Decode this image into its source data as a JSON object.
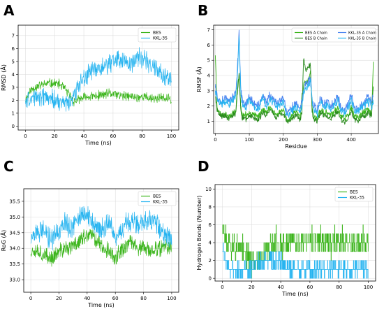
{
  "panels": {
    "a": "A",
    "b": "B",
    "c": "C",
    "d": "D"
  },
  "colors": {
    "bes_green": "#3cb51c",
    "kkl_blue": "#27b4f0",
    "bes_b_dark": "#2a8a1e",
    "kkl_a_blue": "#4c86f0"
  },
  "chart_data": [
    {
      "id": "A",
      "type": "line",
      "xlabel": "Time (ns)",
      "ylabel": "RMSD (Å)",
      "xlim": [
        -5,
        105
      ],
      "ylim": [
        -0.3,
        7.8
      ],
      "xticks": [
        0,
        20,
        40,
        60,
        80,
        100
      ],
      "yticks": [
        0,
        1,
        2,
        3,
        4,
        5,
        6,
        7
      ],
      "grid": true,
      "legend_position": "top-right",
      "series": [
        {
          "name": "BES",
          "color": "#3cb51c",
          "x": [
            0,
            3,
            6,
            9,
            12,
            15,
            18,
            21,
            24,
            27,
            30,
            33,
            36,
            40,
            44,
            48,
            52,
            56,
            60,
            64,
            68,
            72,
            76,
            80,
            84,
            88,
            92,
            96,
            100
          ],
          "y": [
            2.0,
            2.7,
            3.0,
            3.1,
            3.2,
            3.3,
            3.3,
            3.3,
            3.2,
            2.9,
            2.4,
            1.9,
            2.0,
            2.2,
            2.3,
            2.3,
            2.4,
            2.5,
            2.5,
            2.4,
            2.3,
            2.3,
            2.2,
            2.3,
            2.2,
            2.1,
            2.2,
            2.1,
            2.1
          ],
          "noise": 0.45
        },
        {
          "name": "KKL-35",
          "color": "#27b4f0",
          "x": [
            0,
            3,
            6,
            9,
            12,
            15,
            18,
            21,
            24,
            27,
            30,
            33,
            36,
            40,
            44,
            48,
            52,
            56,
            60,
            64,
            68,
            72,
            76,
            80,
            84,
            88,
            92,
            96,
            100
          ],
          "y": [
            2.0,
            2.1,
            2.2,
            2.3,
            2.3,
            2.2,
            2.1,
            1.9,
            1.8,
            1.7,
            1.8,
            2.3,
            3.0,
            3.8,
            4.1,
            4.3,
            4.5,
            4.6,
            5.0,
            5.2,
            5.0,
            4.8,
            5.2,
            5.3,
            5.0,
            4.6,
            4.2,
            3.7,
            3.5
          ],
          "noise": 0.9
        }
      ]
    },
    {
      "id": "B",
      "type": "line",
      "xlabel": "Residue",
      "ylabel": "RMSF (Å)",
      "xlim": [
        -5,
        480
      ],
      "ylim": [
        0.2,
        7.3
      ],
      "xticks": [
        0,
        100,
        200,
        300,
        400
      ],
      "yticks": [
        1,
        2,
        3,
        4,
        5,
        6,
        7
      ],
      "grid": true,
      "legend_position": "top-right",
      "series": [
        {
          "name": "BES A Chain",
          "color": "#3cb51c",
          "x": [
            0,
            5,
            10,
            20,
            30,
            40,
            50,
            60,
            65,
            70,
            75,
            80,
            90,
            100,
            110,
            120,
            130,
            140,
            150,
            160,
            170,
            180,
            190,
            200,
            210,
            220,
            230,
            240,
            250,
            255,
            260,
            265,
            270,
            275,
            280,
            285,
            290,
            300,
            310,
            320,
            330,
            340,
            350,
            360,
            370,
            380,
            390,
            400,
            410,
            420,
            430,
            440,
            450,
            460,
            465
          ],
          "y": [
            5.4,
            2.0,
            1.6,
            1.4,
            1.5,
            1.3,
            1.6,
            1.6,
            3.1,
            4.1,
            1.8,
            1.4,
            1.4,
            1.6,
            1.5,
            1.3,
            1.4,
            1.9,
            1.5,
            2.0,
            1.7,
            1.4,
            1.6,
            1.8,
            1.1,
            1.2,
            1.5,
            1.6,
            1.3,
            2.8,
            3.4,
            3.5,
            3.6,
            3.8,
            4.2,
            1.7,
            1.3,
            1.2,
            1.8,
            1.5,
            1.6,
            1.4,
            1.6,
            1.9,
            1.3,
            1.2,
            1.4,
            1.9,
            1.3,
            1.2,
            1.5,
            1.6,
            1.8,
            1.5,
            4.9
          ],
          "noise": 0.25
        },
        {
          "name": "BES B Chain",
          "color": "#2a8a1e",
          "x": [
            0,
            5,
            10,
            20,
            30,
            40,
            50,
            60,
            65,
            70,
            75,
            80,
            90,
            100,
            110,
            120,
            130,
            140,
            150,
            160,
            170,
            180,
            190,
            200,
            210,
            220,
            230,
            240,
            250,
            255,
            260,
            265,
            270,
            275,
            280,
            285,
            290,
            300,
            310,
            320,
            330,
            340,
            350,
            360,
            370,
            380,
            390,
            400,
            410,
            420,
            430,
            440,
            450,
            460,
            465
          ],
          "y": [
            2.7,
            1.8,
            1.5,
            1.3,
            1.4,
            1.2,
            1.4,
            1.5,
            2.8,
            4.2,
            1.6,
            1.2,
            1.2,
            1.4,
            1.3,
            1.1,
            1.2,
            1.6,
            1.3,
            1.8,
            1.5,
            1.2,
            1.4,
            1.5,
            1.0,
            1.0,
            1.3,
            1.4,
            1.1,
            1.6,
            5.2,
            4.3,
            4.5,
            4.7,
            4.6,
            1.6,
            1.2,
            1.0,
            1.6,
            1.3,
            1.4,
            1.2,
            1.4,
            1.6,
            1.1,
            1.0,
            1.2,
            1.7,
            1.1,
            1.0,
            1.3,
            1.4,
            1.6,
            1.3,
            3.4
          ],
          "noise": 0.25
        },
        {
          "name": "KKL-35 A Chain",
          "color": "#4c86f0",
          "x": [
            0,
            5,
            10,
            20,
            30,
            40,
            50,
            60,
            65,
            70,
            75,
            80,
            90,
            100,
            110,
            120,
            130,
            140,
            150,
            160,
            170,
            180,
            190,
            200,
            210,
            220,
            230,
            240,
            250,
            255,
            260,
            265,
            270,
            275,
            280,
            285,
            290,
            300,
            310,
            320,
            330,
            340,
            350,
            360,
            370,
            380,
            390,
            400,
            410,
            420,
            430,
            440,
            450,
            460,
            465
          ],
          "y": [
            3.3,
            2.6,
            2.4,
            2.3,
            2.6,
            2.3,
            2.6,
            2.8,
            4.5,
            7.0,
            3.0,
            2.3,
            2.0,
            2.6,
            2.3,
            2.0,
            2.1,
            2.8,
            2.2,
            2.7,
            2.5,
            2.1,
            2.3,
            2.5,
            1.6,
            1.7,
            2.0,
            2.2,
            1.8,
            2.3,
            3.1,
            3.4,
            3.5,
            3.6,
            3.9,
            2.5,
            2.0,
            1.7,
            2.5,
            2.1,
            2.3,
            2.0,
            2.3,
            2.7,
            1.9,
            1.8,
            2.0,
            2.7,
            1.9,
            1.8,
            2.2,
            2.3,
            2.6,
            2.2,
            2.6
          ],
          "noise": 0.35
        },
        {
          "name": "KKL-35 B Chain",
          "color": "#27b4f0",
          "x": [
            0,
            5,
            10,
            20,
            30,
            40,
            50,
            60,
            65,
            70,
            75,
            80,
            90,
            100,
            110,
            120,
            130,
            140,
            150,
            160,
            170,
            180,
            190,
            200,
            210,
            220,
            230,
            240,
            250,
            255,
            260,
            265,
            270,
            275,
            280,
            285,
            290,
            300,
            310,
            320,
            330,
            340,
            350,
            360,
            370,
            380,
            390,
            400,
            410,
            420,
            430,
            440,
            450,
            460,
            465
          ],
          "y": [
            3.1,
            2.5,
            2.2,
            2.1,
            2.4,
            2.1,
            2.4,
            2.6,
            4.0,
            6.6,
            2.8,
            2.1,
            1.9,
            2.4,
            2.1,
            1.8,
            1.9,
            2.5,
            2.0,
            2.4,
            2.3,
            1.9,
            2.1,
            2.3,
            1.4,
            1.5,
            1.8,
            2.0,
            1.6,
            2.0,
            2.8,
            3.1,
            3.2,
            3.3,
            3.6,
            2.3,
            1.8,
            1.5,
            2.3,
            1.9,
            2.1,
            1.8,
            2.1,
            2.4,
            1.7,
            1.6,
            1.8,
            2.4,
            1.7,
            1.6,
            2.0,
            2.1,
            2.3,
            2.0,
            2.3
          ],
          "noise": 0.35
        }
      ]
    },
    {
      "id": "C",
      "type": "line",
      "xlabel": "Time (ns)",
      "ylabel": "RoG (Å)",
      "xlim": [
        -5,
        105
      ],
      "ylim": [
        32.6,
        35.9
      ],
      "xticks": [
        0,
        20,
        40,
        60,
        80,
        100
      ],
      "yticks": [
        33.0,
        33.5,
        34.0,
        34.5,
        35.0,
        35.5
      ],
      "grid": true,
      "legend_position": "top-right",
      "series": [
        {
          "name": "BES",
          "color": "#3cb51c",
          "x": [
            0,
            3,
            6,
            9,
            12,
            15,
            18,
            21,
            24,
            27,
            30,
            33,
            36,
            40,
            44,
            48,
            52,
            56,
            60,
            64,
            68,
            72,
            76,
            80,
            84,
            88,
            92,
            96,
            100
          ],
          "y": [
            33.9,
            34.0,
            33.9,
            33.8,
            33.7,
            33.7,
            33.8,
            33.9,
            34.0,
            34.0,
            34.1,
            34.2,
            34.3,
            34.4,
            34.4,
            34.2,
            34.0,
            33.9,
            33.7,
            33.9,
            34.1,
            34.2,
            34.0,
            34.0,
            33.9,
            34.0,
            34.0,
            34.0,
            34.0
          ],
          "noise": 0.32
        },
        {
          "name": "KKL-35",
          "color": "#27b4f0",
          "x": [
            0,
            3,
            6,
            9,
            12,
            15,
            18,
            21,
            24,
            27,
            30,
            33,
            36,
            40,
            44,
            48,
            52,
            56,
            60,
            64,
            68,
            72,
            76,
            80,
            84,
            88,
            92,
            96,
            100
          ],
          "y": [
            34.3,
            34.4,
            34.5,
            34.6,
            34.4,
            34.3,
            34.4,
            34.6,
            34.8,
            34.7,
            34.6,
            34.9,
            35.1,
            35.0,
            34.9,
            34.6,
            34.7,
            34.8,
            34.3,
            34.6,
            34.8,
            34.9,
            34.8,
            34.9,
            34.9,
            34.8,
            34.6,
            34.4,
            34.3
          ],
          "noise": 0.4
        }
      ]
    },
    {
      "id": "D",
      "type": "line",
      "xlabel": "Time (ns)",
      "ylabel": "Hydrogen Bonds (Number)",
      "xlim": [
        -5,
        105
      ],
      "ylim": [
        -0.3,
        10.5
      ],
      "xticks": [
        0,
        20,
        40,
        60,
        80,
        100
      ],
      "yticks": [
        0,
        2,
        4,
        6,
        8,
        10
      ],
      "grid": true,
      "legend_position": "top-right",
      "series": [
        {
          "name": "BES",
          "color": "#3cb51c",
          "x": [
            0,
            2,
            5,
            10,
            15,
            20,
            25,
            30,
            35,
            40,
            45,
            50,
            55,
            60,
            65,
            70,
            75,
            80,
            85,
            90,
            95,
            100
          ],
          "y": [
            6,
            4,
            4,
            3,
            3,
            2,
            2,
            3,
            4,
            4,
            4,
            4,
            4,
            4,
            4,
            4,
            4,
            4,
            4,
            4,
            4,
            4
          ],
          "noise": 1.8
        },
        {
          "name": "KKL-35",
          "color": "#27b4f0",
          "x": [
            0,
            2,
            5,
            10,
            15,
            20,
            25,
            30,
            35,
            40,
            45,
            50,
            55,
            60,
            65,
            70,
            75,
            80,
            85,
            90,
            95,
            100
          ],
          "y": [
            3,
            2,
            1,
            1,
            1,
            1,
            2,
            2,
            2,
            2,
            1,
            1,
            1,
            1,
            1,
            1,
            1,
            1,
            1,
            1,
            1,
            1
          ],
          "noise": 1.2
        }
      ]
    }
  ]
}
